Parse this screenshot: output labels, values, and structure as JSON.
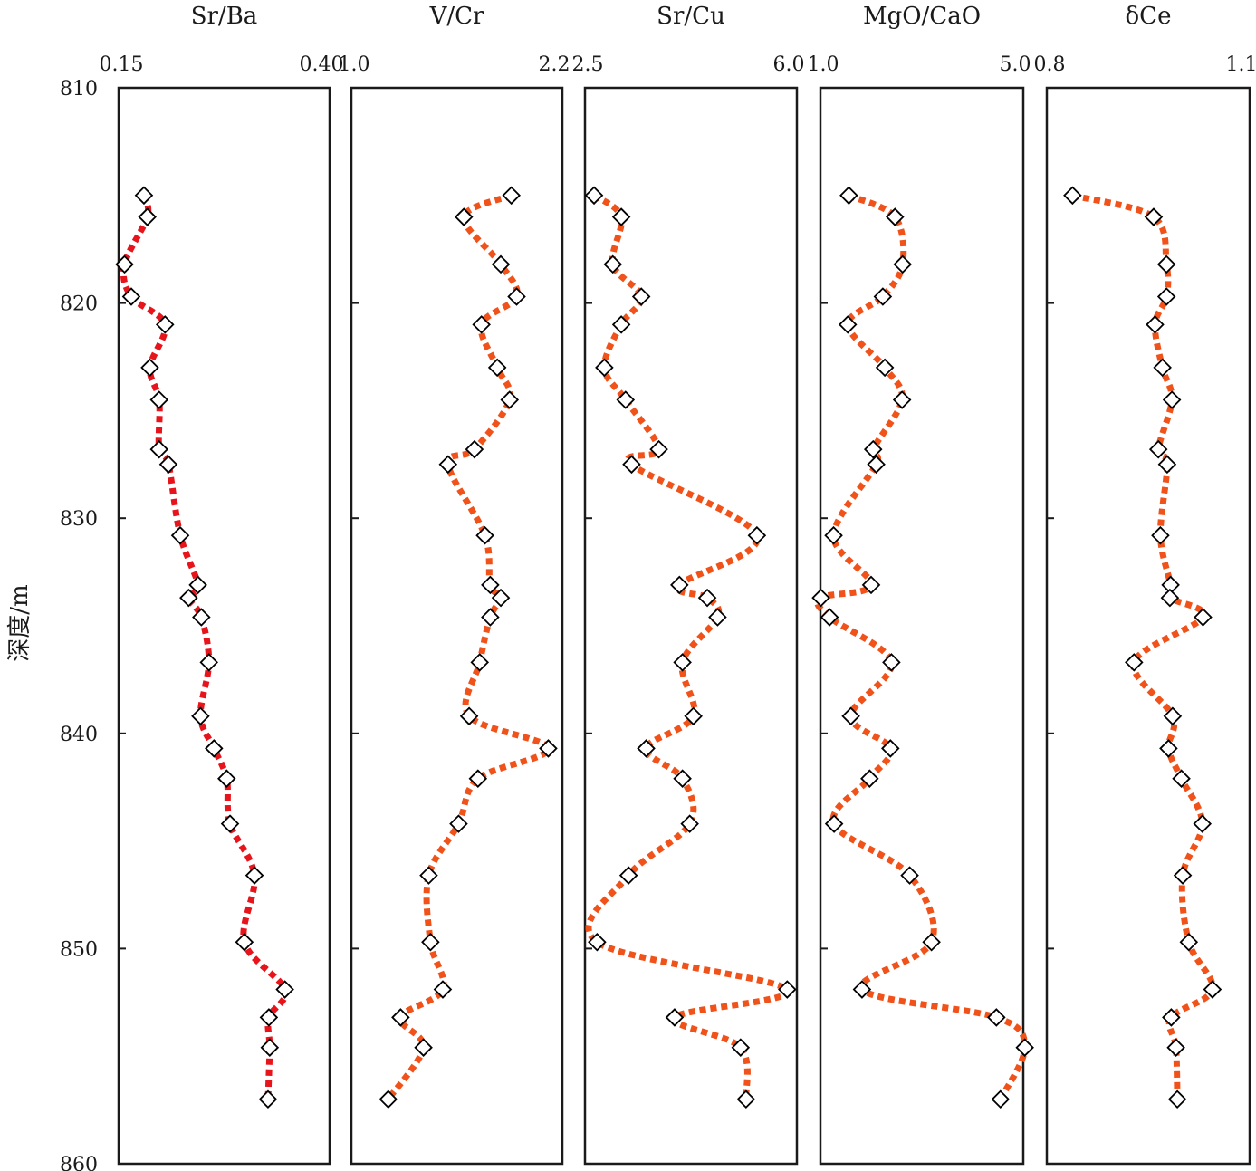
{
  "chart_data": [
    {
      "type": "line",
      "title": "Sr/Ba",
      "xlim": [
        0.15,
        0.4
      ],
      "xtick_labels": [
        "0.15",
        "0.40"
      ],
      "line_color": "#e8141c",
      "y": [
        815,
        816,
        818.2,
        819.7,
        821,
        823,
        824.5,
        826.8,
        827.5,
        830.8,
        833.1,
        833.7,
        834.6,
        836.7,
        839.2,
        840.7,
        842.1,
        844.2,
        846.6,
        849.7,
        851.9,
        853.2,
        854.6,
        857
      ],
      "x": [
        0.18,
        0.184,
        0.157,
        0.165,
        0.205,
        0.187,
        0.198,
        0.198,
        0.209,
        0.223,
        0.244,
        0.233,
        0.248,
        0.257,
        0.247,
        0.263,
        0.278,
        0.282,
        0.311,
        0.299,
        0.347,
        0.328,
        0.329,
        0.327
      ]
    },
    {
      "type": "line",
      "title": "V/Cr",
      "xlim": [
        1.0,
        2.2
      ],
      "xtick_labels": [
        "1.0",
        "2.2"
      ],
      "line_color": "#f0521a",
      "y": [
        815,
        816,
        818.2,
        819.7,
        821,
        823,
        824.5,
        826.8,
        827.5,
        830.8,
        833.1,
        833.7,
        834.6,
        836.7,
        839.2,
        840.7,
        842.1,
        844.2,
        846.6,
        849.7,
        851.9,
        853.2,
        854.6,
        857
      ],
      "x": [
        1.91,
        1.64,
        1.85,
        1.94,
        1.74,
        1.83,
        1.9,
        1.7,
        1.55,
        1.76,
        1.79,
        1.85,
        1.79,
        1.73,
        1.67,
        2.12,
        1.72,
        1.61,
        1.44,
        1.45,
        1.52,
        1.28,
        1.41,
        1.21
      ]
    },
    {
      "type": "line",
      "title": "Sr/Cu",
      "xlim": [
        2.5,
        6.0
      ],
      "xtick_labels": [
        "2.5",
        "6.0"
      ],
      "line_color": "#f0521a",
      "y": [
        815,
        816,
        818.2,
        819.7,
        821,
        823,
        824.5,
        826.8,
        827.5,
        830.8,
        833.1,
        833.7,
        834.6,
        836.7,
        839.2,
        840.7,
        842.1,
        844.2,
        846.6,
        849.7,
        851.9,
        853.2,
        854.6,
        857
      ],
      "x": [
        2.65,
        3.1,
        2.96,
        3.43,
        3.1,
        2.82,
        3.17,
        3.72,
        3.27,
        5.34,
        4.06,
        4.52,
        4.69,
        4.11,
        4.29,
        3.51,
        4.11,
        4.23,
        3.22,
        2.7,
        5.84,
        3.98,
        5.07,
        5.16
      ]
    },
    {
      "type": "line",
      "title": "MgO/CaO",
      "xlim": [
        1.0,
        5.0
      ],
      "xtick_labels": [
        "1.0",
        "5.0"
      ],
      "line_color": "#f0521a",
      "y": [
        815,
        816,
        818.2,
        819.7,
        821,
        823,
        824.5,
        826.8,
        827.5,
        830.8,
        833.1,
        833.7,
        834.6,
        836.7,
        839.2,
        840.7,
        842.1,
        844.2,
        846.6,
        849.7,
        851.9,
        853.2,
        854.6,
        857
      ],
      "x": [
        1.56,
        2.47,
        2.62,
        2.23,
        1.54,
        2.27,
        2.61,
        2.04,
        2.1,
        1.26,
        2.0,
        1.01,
        1.18,
        2.4,
        1.6,
        2.38,
        1.97,
        1.27,
        2.76,
        3.19,
        1.82,
        4.47,
        5.03,
        4.55
      ]
    },
    {
      "type": "line",
      "title": "δCe",
      "xlim": [
        0.8,
        1.1
      ],
      "xtick_labels": [
        "0.8",
        "1.1"
      ],
      "line_color": "#f0521a",
      "y": [
        815,
        816,
        818.2,
        819.7,
        821,
        823,
        824.5,
        826.8,
        827.5,
        830.8,
        833.1,
        833.7,
        834.6,
        836.7,
        839.2,
        840.7,
        842.1,
        844.2,
        846.6,
        849.7,
        851.9,
        853.2,
        854.6,
        857
      ],
      "x": [
        0.838,
        0.958,
        0.977,
        0.977,
        0.96,
        0.971,
        0.985,
        0.965,
        0.978,
        0.968,
        0.983,
        0.982,
        1.031,
        0.929,
        0.986,
        0.98,
        0.999,
        1.03,
        1.001,
        1.01,
        1.045,
        0.984,
        0.991,
        0.993
      ]
    }
  ],
  "y_axis": {
    "label": "深度/m",
    "ylim": [
      810,
      860
    ],
    "ticks": [
      810,
      820,
      830,
      840,
      850,
      860
    ],
    "tick_labels": [
      "810",
      "820",
      "830",
      "840",
      "850",
      "860"
    ],
    "inverted": true
  },
  "style": {
    "marker": "diamond",
    "marker_edge": "#000000",
    "marker_fill": "#ffffff",
    "line_style": "dotted"
  }
}
